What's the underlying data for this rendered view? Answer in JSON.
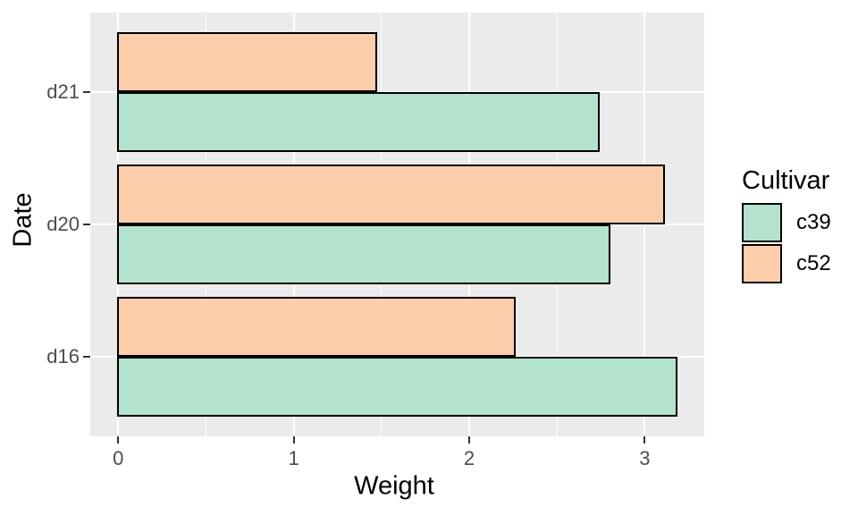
{
  "figure": {
    "background": "#FFFFFF",
    "panel_background": "#EBEBEB",
    "grid_color": "#FFFFFF",
    "bar_border_color": "#000000",
    "tick_mark_color": "#333333",
    "tick_label_color": "#4D4D4D",
    "axis_title_color": "#000000",
    "legend_text_color": "#000000"
  },
  "chart_data": {
    "type": "bar",
    "orientation": "horizontal",
    "title": "",
    "xlabel": "Weight",
    "ylabel": "Date",
    "categories_top_to_bottom": [
      "d21",
      "d20",
      "d16"
    ],
    "series": [
      {
        "name": "c39",
        "color": "#B3E2CD",
        "values_top_to_bottom": [
          2.74,
          2.8,
          3.18
        ]
      },
      {
        "name": "c52",
        "color": "#FDCDAC",
        "values_top_to_bottom": [
          1.47,
          3.11,
          2.26
        ]
      }
    ],
    "x_ticks": [
      0,
      1,
      2,
      3
    ],
    "x_minor_gridlines": [
      0.5,
      1.5,
      2.5
    ],
    "xlim": [
      -0.159,
      3.339
    ],
    "grid": "white major+minor vertical, white major horizontal on grey panel",
    "legend": {
      "title": "Cultivar",
      "position": "right",
      "entries": [
        {
          "label": "c39",
          "color": "#B3E2CD"
        },
        {
          "label": "c52",
          "color": "#FDCDAC"
        }
      ]
    }
  }
}
